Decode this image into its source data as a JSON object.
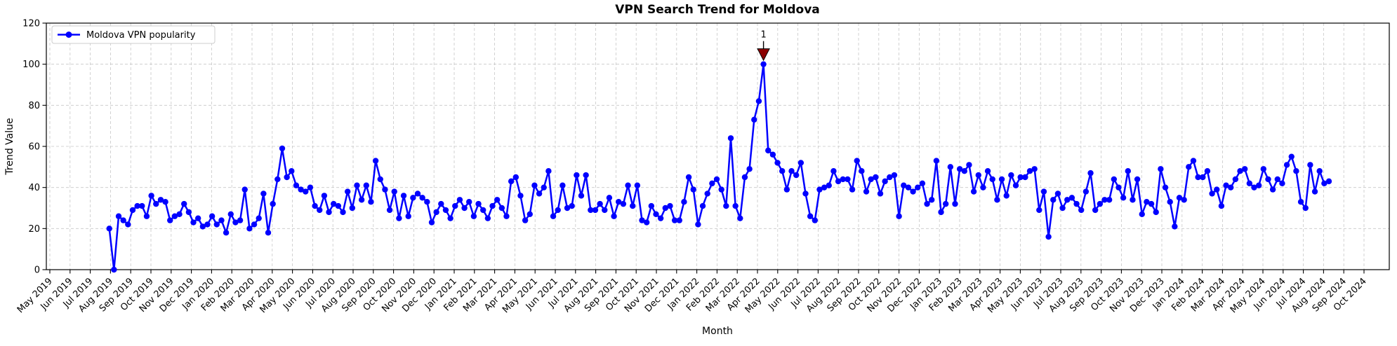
{
  "chart_data": {
    "type": "line",
    "title": "VPN Search Trend for Moldova",
    "xlabel": "Month",
    "ylabel": "Trend Value",
    "ylim": [
      0,
      120
    ],
    "yticks": [
      0,
      20,
      40,
      60,
      80,
      100,
      120
    ],
    "grid": "dashed",
    "x_tick_labels": [
      "May 2019",
      "Jun 2019",
      "Jul 2019",
      "Aug 2019",
      "Sep 2019",
      "Oct 2019",
      "Nov 2019",
      "Dec 2019",
      "Jan 2020",
      "Feb 2020",
      "Mar 2020",
      "Apr 2020",
      "May 2020",
      "Jun 2020",
      "Jul 2020",
      "Aug 2020",
      "Sep 2020",
      "Oct 2020",
      "Nov 2020",
      "Dec 2020",
      "Jan 2021",
      "Feb 2021",
      "Mar 2021",
      "Apr 2021",
      "May 2021",
      "Jun 2021",
      "Jul 2021",
      "Aug 2021",
      "Sep 2021",
      "Oct 2021",
      "Nov 2021",
      "Dec 2021",
      "Jan 2022",
      "Feb 2022",
      "Mar 2022",
      "Apr 2022",
      "May 2022",
      "Jun 2022",
      "Jul 2022",
      "Aug 2022",
      "Sep 2022",
      "Oct 2022",
      "Nov 2022",
      "Dec 2022",
      "Jan 2023",
      "Feb 2023",
      "Mar 2023",
      "Apr 2023",
      "May 2023",
      "Jun 2023",
      "Jul 2023",
      "Aug 2023",
      "Sep 2023",
      "Oct 2023",
      "Nov 2023",
      "Dec 2023",
      "Jan 2024",
      "Feb 2024",
      "Mar 2024",
      "Apr 2024",
      "May 2024",
      "Jun 2024",
      "Jul 2024",
      "Aug 2024",
      "Sep 2024",
      "Oct 2024"
    ],
    "legend": {
      "position": "upper left",
      "entries": [
        {
          "label": "Moldova VPN popularity",
          "color": "#0000ff",
          "marker": "circle"
        }
      ]
    },
    "series": [
      {
        "name": "Moldova VPN popularity",
        "color": "#0000ff",
        "marker": "circle",
        "cadence": "weekly",
        "first_point": "Aug 2019",
        "last_point": "Aug 2024",
        "values": [
          20,
          0,
          26,
          24,
          22,
          29,
          31,
          31,
          26,
          36,
          32,
          34,
          33,
          24,
          26,
          27,
          32,
          28,
          23,
          25,
          21,
          22,
          26,
          22,
          24,
          18,
          27,
          23,
          24,
          39,
          20,
          22,
          25,
          37,
          18,
          32,
          44,
          59,
          45,
          48,
          41,
          39,
          38,
          40,
          31,
          29,
          36,
          28,
          32,
          31,
          28,
          38,
          30,
          41,
          34,
          41,
          33,
          53,
          44,
          39,
          29,
          38,
          25,
          36,
          26,
          35,
          37,
          35,
          33,
          23,
          28,
          32,
          29,
          25,
          31,
          34,
          30,
          33,
          26,
          32,
          29,
          25,
          31,
          34,
          30,
          26,
          43,
          45,
          36,
          24,
          27,
          41,
          37,
          40,
          48,
          26,
          29,
          41,
          30,
          31,
          46,
          36,
          46,
          29,
          29,
          32,
          29,
          35,
          26,
          33,
          32,
          41,
          31,
          41,
          24,
          23,
          31,
          27,
          25,
          30,
          31,
          24,
          24,
          33,
          45,
          39,
          22,
          31,
          37,
          42,
          44,
          39,
          31,
          64,
          31,
          25,
          45,
          49,
          73,
          82,
          100,
          58,
          56,
          52,
          48,
          39,
          48,
          46,
          52,
          37,
          26,
          24,
          39,
          40,
          41,
          48,
          43,
          44,
          44,
          39,
          53,
          48,
          38,
          44,
          45,
          37,
          43,
          45,
          46,
          26,
          41,
          40,
          38,
          40,
          42,
          32,
          34,
          53,
          28,
          32,
          50,
          32,
          49,
          48,
          51,
          38,
          46,
          40,
          48,
          44,
          34,
          44,
          36,
          46,
          41,
          45,
          45,
          48,
          49,
          29,
          38,
          16,
          34,
          37,
          30,
          34,
          35,
          32,
          29,
          38,
          47,
          29,
          32,
          34,
          34,
          44,
          40,
          35,
          48,
          34,
          44,
          27,
          33,
          32,
          28,
          49,
          40,
          33,
          21,
          35,
          34,
          50,
          53,
          45,
          45,
          48,
          37,
          39,
          31,
          41,
          40,
          44,
          48,
          49,
          42,
          40,
          41,
          49,
          44,
          39,
          44,
          42,
          51,
          55,
          48,
          33,
          30,
          51,
          38,
          48,
          42,
          43
        ]
      }
    ],
    "annotation": {
      "label": "1",
      "color": "#8b0000",
      "marker": "triangle-down",
      "at_value": 100
    },
    "colors": {
      "line": "#0000ff",
      "annotation": "#8b0000",
      "grid": "#c7c7c7",
      "axes_border": "#000000",
      "legend_border": "#cccccc",
      "background": "#ffffff"
    }
  }
}
